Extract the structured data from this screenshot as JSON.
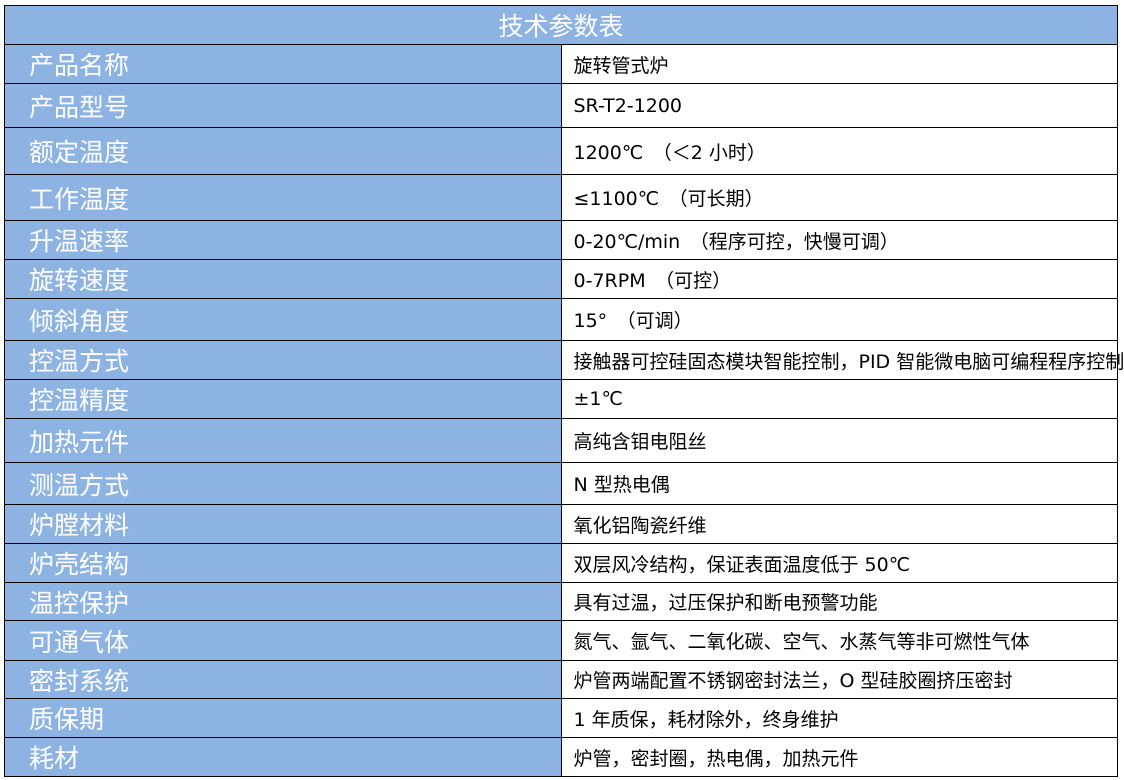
{
  "title": "技术参数表",
  "colors": {
    "header_bg": "#8DB3E2",
    "label_text": "#FFFFFF"
  },
  "rows": [
    {
      "label": "产品名称",
      "value": "旋转管式炉"
    },
    {
      "label": "产品型号",
      "value": "SR-T2-1200"
    },
    {
      "label": "额定温度",
      "value": "1200℃　（＜2 小时）"
    },
    {
      "label": "工作温度",
      "value": "≤1100℃　（可长期）"
    },
    {
      "label": "升温速率",
      "value": "0-20℃/min　（程序可控，快慢可调）"
    },
    {
      "label": "旋转速度",
      "value": "0-7RPM　（可控）"
    },
    {
      "label": "倾斜角度",
      "value": "15°　（可调）"
    },
    {
      "label": "控温方式",
      "value": "接触器可控硅固态模块智能控制，PID 智能微电脑可编程程序控制"
    },
    {
      "label": "控温精度",
      "value": "±1℃"
    },
    {
      "label": "加热元件",
      "value": "高纯含钼电阻丝"
    },
    {
      "label": "测温方式",
      "value": "N 型热电偶"
    },
    {
      "label": "炉膛材料",
      "value": "氧化铝陶瓷纤维"
    },
    {
      "label": "炉壳结构",
      "value": "双层风冷结构，保证表面温度低于 50℃"
    },
    {
      "label": "温控保护",
      "value": "具有过温，过压保护和断电预警功能"
    },
    {
      "label": "可通气体",
      "value": "氮气、氩气、二氧化碳、空气、水蒸气等非可燃性气体"
    },
    {
      "label": "密封系统",
      "value": "炉管两端配置不锈钢密封法兰，O 型硅胶圈挤压密封"
    },
    {
      "label": "质保期",
      "value": "1 年质保，耗材除外，终身维护"
    },
    {
      "label": "耗材",
      "value": "炉管，密封圈，热电偶，加热元件"
    }
  ]
}
